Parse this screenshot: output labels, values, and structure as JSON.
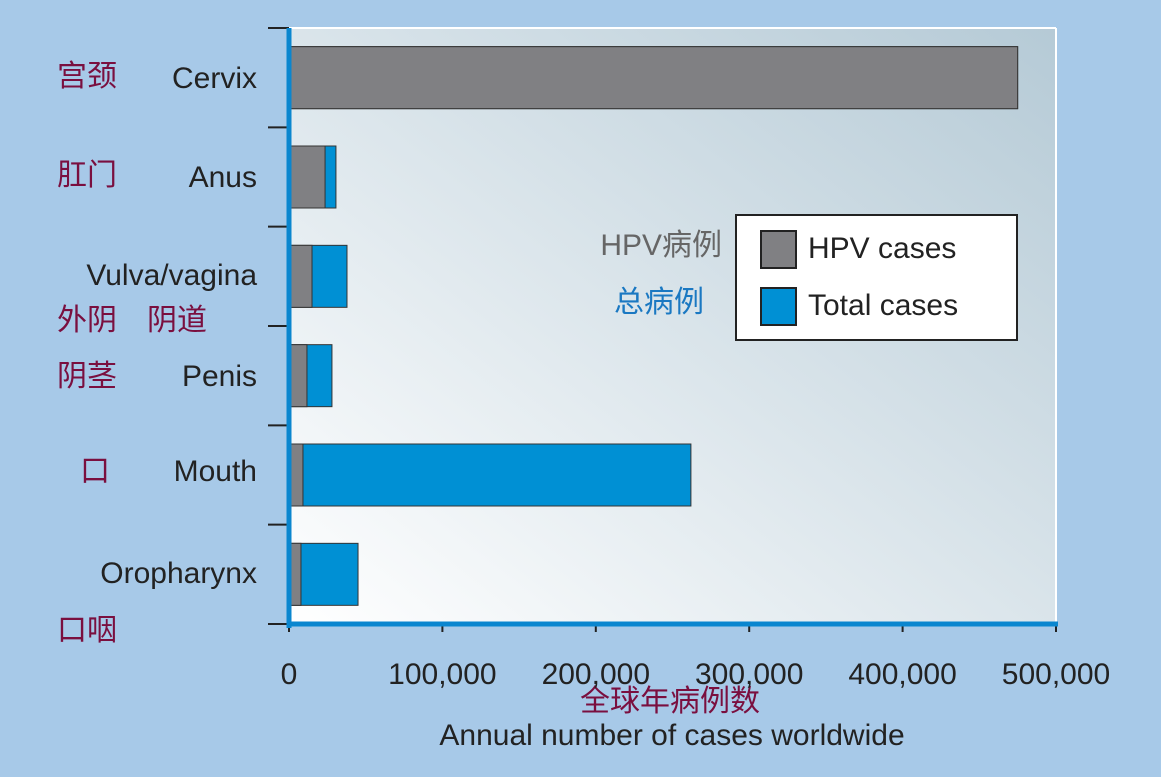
{
  "chart_data": {
    "type": "bar",
    "orientation": "horizontal",
    "categories": [
      "Cervix",
      "Anus",
      "Vulva/vagina",
      "Penis",
      "Mouth",
      "Oropharynx"
    ],
    "category_notes": [
      "宫颈",
      "肛门",
      "外阴　阴道",
      "阴茎",
      "口",
      "口咽"
    ],
    "series": [
      {
        "name": "Total cases",
        "color": "#0090d4",
        "values": [
          475000,
          30600,
          37800,
          28000,
          262000,
          45000
        ]
      },
      {
        "name": "HPV cases",
        "color": "#808083",
        "values": [
          475000,
          23500,
          15000,
          11700,
          9100,
          7800
        ]
      }
    ],
    "series_notes": [
      "总病例",
      "HPV病例"
    ],
    "xlim": [
      0,
      500000
    ],
    "xticks": [
      0,
      {
        "value": 100000,
        "label": "100,000"
      },
      {
        "value": 200000,
        "label": "200,000"
      },
      {
        "value": 300000,
        "label": "300,000"
      },
      {
        "value": 400000,
        "label": "400,000"
      },
      {
        "value": 500000,
        "label": "500,000"
      }
    ],
    "x_label": "Annual number of cases worldwide",
    "x_label_note": "全球年病例数",
    "legend": "right"
  }
}
